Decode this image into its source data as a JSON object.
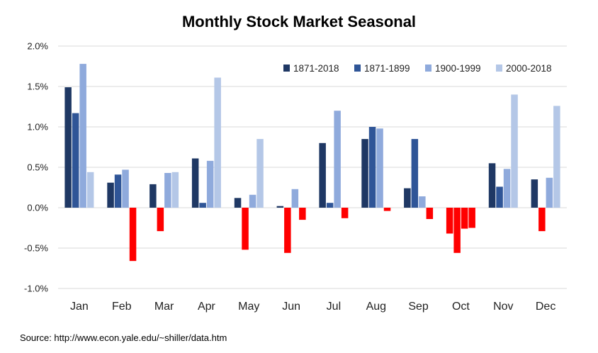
{
  "chart_data": {
    "type": "bar",
    "title": "Monthly Stock Market Seasonal",
    "xlabel": "",
    "ylabel": "",
    "ylim": [
      -1.0,
      2.0
    ],
    "y_ticks": [
      "2.0%",
      "1.5%",
      "1.0%",
      "0.5%",
      "0.0%",
      "-0.5%",
      "-1.0%"
    ],
    "y_tick_values": [
      2.0,
      1.5,
      1.0,
      0.5,
      0.0,
      -0.5,
      -1.0
    ],
    "grid": true,
    "legend_position": "top-right",
    "categories": [
      "Jan",
      "Feb",
      "Mar",
      "Apr",
      "May",
      "Jun",
      "Jul",
      "Aug",
      "Sep",
      "Oct",
      "Nov",
      "Dec"
    ],
    "negative_color": "#ff0000",
    "series": [
      {
        "name": "1871-2018",
        "color": "#1f3864",
        "values": [
          1.49,
          0.31,
          0.29,
          0.61,
          0.12,
          0.02,
          0.8,
          0.85,
          0.24,
          -0.32,
          0.55,
          0.35
        ]
      },
      {
        "name": "1871-1899",
        "color": "#2f5597",
        "values": [
          1.17,
          0.41,
          -0.29,
          0.06,
          -0.52,
          -0.56,
          0.06,
          1.0,
          0.85,
          -0.56,
          0.26,
          -0.29
        ]
      },
      {
        "name": "1900-1999",
        "color": "#8faadc",
        "values": [
          1.78,
          0.47,
          0.43,
          0.58,
          0.16,
          0.23,
          1.2,
          0.98,
          0.14,
          -0.26,
          0.48,
          0.37
        ]
      },
      {
        "name": "2000-2018",
        "color": "#b4c7e7",
        "values": [
          0.44,
          -0.66,
          0.44,
          1.61,
          0.85,
          -0.15,
          -0.13,
          -0.04,
          -0.14,
          -0.25,
          1.4,
          1.26
        ]
      }
    ]
  },
  "source_text": "Source: http://www.econ.yale.edu/~shiller/data.htm"
}
